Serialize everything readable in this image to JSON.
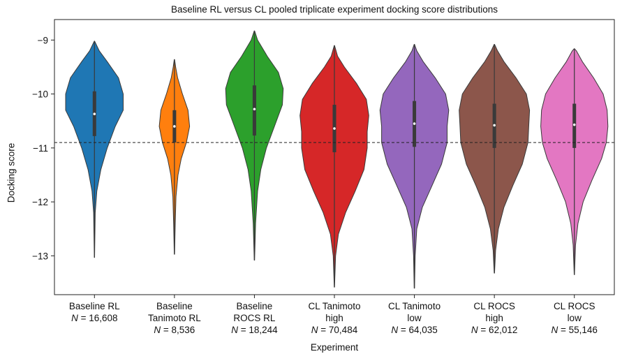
{
  "chart_data": {
    "type": "violin",
    "title": "Baseline RL versus CL pooled triplicate experiment docking score distributions",
    "xlabel": "Experiment",
    "ylabel": "Docking score",
    "ylim": [
      -13.72,
      -8.62
    ],
    "yticks": [
      -9,
      -10,
      -11,
      -12,
      -13
    ],
    "ytick_labels": [
      "−9",
      "−10",
      "−11",
      "−12",
      "−13"
    ],
    "reference_line": -10.9,
    "categories": [
      {
        "lines": [
          "Baseline RL"
        ],
        "n_prefix": "N",
        "n_text": " = 16,608",
        "color": "#1f77b4",
        "min": -13.03,
        "max": -9.02,
        "q1": -10.78,
        "median": -10.37,
        "q3": -9.95,
        "density": [
          [
            -13.03,
            0.004
          ],
          [
            -12.2,
            0.02
          ],
          [
            -11.8,
            0.06
          ],
          [
            -11.4,
            0.16
          ],
          [
            -11.0,
            0.32
          ],
          [
            -10.6,
            0.52
          ],
          [
            -10.3,
            0.72
          ],
          [
            -10.0,
            0.72
          ],
          [
            -9.7,
            0.6
          ],
          [
            -9.4,
            0.32
          ],
          [
            -9.2,
            0.12
          ],
          [
            -9.02,
            0.004
          ]
        ]
      },
      {
        "lines": [
          "Baseline",
          "Tanimoto RL"
        ],
        "n_prefix": "N",
        "n_text": " = 8,536",
        "color": "#ff7f0e",
        "min": -12.97,
        "max": -9.36,
        "q1": -10.9,
        "median": -10.6,
        "q3": -10.3,
        "density": [
          [
            -12.97,
            0.004
          ],
          [
            -12.4,
            0.02
          ],
          [
            -11.9,
            0.04
          ],
          [
            -11.5,
            0.09
          ],
          [
            -11.2,
            0.17
          ],
          [
            -10.9,
            0.3
          ],
          [
            -10.6,
            0.38
          ],
          [
            -10.3,
            0.34
          ],
          [
            -10.0,
            0.2
          ],
          [
            -9.7,
            0.08
          ],
          [
            -9.5,
            0.03
          ],
          [
            -9.36,
            0.004
          ]
        ]
      },
      {
        "lines": [
          "Baseline",
          "ROCS RL"
        ],
        "n_prefix": "N",
        "n_text": " = 18,244",
        "color": "#2ca02c",
        "min": -13.08,
        "max": -8.83,
        "q1": -10.77,
        "median": -10.28,
        "q3": -9.84,
        "density": [
          [
            -13.08,
            0.004
          ],
          [
            -12.4,
            0.03
          ],
          [
            -11.8,
            0.08
          ],
          [
            -11.4,
            0.16
          ],
          [
            -11.0,
            0.3
          ],
          [
            -10.6,
            0.5
          ],
          [
            -10.2,
            0.7
          ],
          [
            -9.9,
            0.72
          ],
          [
            -9.6,
            0.6
          ],
          [
            -9.3,
            0.32
          ],
          [
            -9.0,
            0.08
          ],
          [
            -8.83,
            0.004
          ]
        ]
      },
      {
        "lines": [
          "CL Tanimoto",
          "high"
        ],
        "n_prefix": "N",
        "n_text": " = 70,484",
        "color": "#d62728",
        "min": -13.58,
        "max": -9.1,
        "q1": -11.08,
        "median": -10.64,
        "q3": -10.2,
        "density": [
          [
            -13.58,
            0.004
          ],
          [
            -13.0,
            0.03
          ],
          [
            -12.6,
            0.1
          ],
          [
            -12.2,
            0.28
          ],
          [
            -11.8,
            0.52
          ],
          [
            -11.4,
            0.74
          ],
          [
            -11.0,
            0.82
          ],
          [
            -10.7,
            0.82
          ],
          [
            -10.4,
            0.86
          ],
          [
            -10.1,
            0.8
          ],
          [
            -9.8,
            0.55
          ],
          [
            -9.5,
            0.25
          ],
          [
            -9.3,
            0.08
          ],
          [
            -9.1,
            0.004
          ]
        ]
      },
      {
        "lines": [
          "CL Tanimoto",
          "low"
        ],
        "n_prefix": "N",
        "n_text": " = 64,035",
        "color": "#9467bd",
        "min": -13.6,
        "max": -9.08,
        "q1": -10.98,
        "median": -10.55,
        "q3": -10.13,
        "density": [
          [
            -13.6,
            0.004
          ],
          [
            -13.0,
            0.02
          ],
          [
            -12.5,
            0.06
          ],
          [
            -12.1,
            0.2
          ],
          [
            -11.7,
            0.44
          ],
          [
            -11.3,
            0.68
          ],
          [
            -10.9,
            0.82
          ],
          [
            -10.6,
            0.82
          ],
          [
            -10.3,
            0.86
          ],
          [
            -10.0,
            0.78
          ],
          [
            -9.7,
            0.52
          ],
          [
            -9.4,
            0.22
          ],
          [
            -9.2,
            0.06
          ],
          [
            -9.08,
            0.004
          ]
        ]
      },
      {
        "lines": [
          "CL ROCS",
          "high"
        ],
        "n_prefix": "N",
        "n_text": " = 62,012",
        "color": "#8c564b",
        "min": -13.32,
        "max": -9.08,
        "q1": -11.0,
        "median": -10.58,
        "q3": -10.18,
        "density": [
          [
            -13.32,
            0.004
          ],
          [
            -12.9,
            0.03
          ],
          [
            -12.5,
            0.1
          ],
          [
            -12.1,
            0.24
          ],
          [
            -11.7,
            0.46
          ],
          [
            -11.3,
            0.7
          ],
          [
            -10.9,
            0.84
          ],
          [
            -10.6,
            0.86
          ],
          [
            -10.3,
            0.88
          ],
          [
            -10.0,
            0.8
          ],
          [
            -9.7,
            0.54
          ],
          [
            -9.4,
            0.24
          ],
          [
            -9.2,
            0.08
          ],
          [
            -9.08,
            0.004
          ]
        ]
      },
      {
        "lines": [
          "CL ROCS",
          "low"
        ],
        "n_prefix": "N",
        "n_text": " = 55,146",
        "color": "#e377c2",
        "min": -13.35,
        "max": -9.16,
        "q1": -11.0,
        "median": -10.57,
        "q3": -10.18,
        "density": [
          [
            -13.35,
            0.004
          ],
          [
            -12.8,
            0.03
          ],
          [
            -12.4,
            0.09
          ],
          [
            -12.0,
            0.22
          ],
          [
            -11.6,
            0.44
          ],
          [
            -11.2,
            0.68
          ],
          [
            -10.9,
            0.8
          ],
          [
            -10.6,
            0.84
          ],
          [
            -10.3,
            0.82
          ],
          [
            -10.0,
            0.72
          ],
          [
            -9.7,
            0.48
          ],
          [
            -9.4,
            0.2
          ],
          [
            -9.2,
            0.05
          ],
          [
            -9.16,
            0.004
          ]
        ]
      }
    ]
  }
}
